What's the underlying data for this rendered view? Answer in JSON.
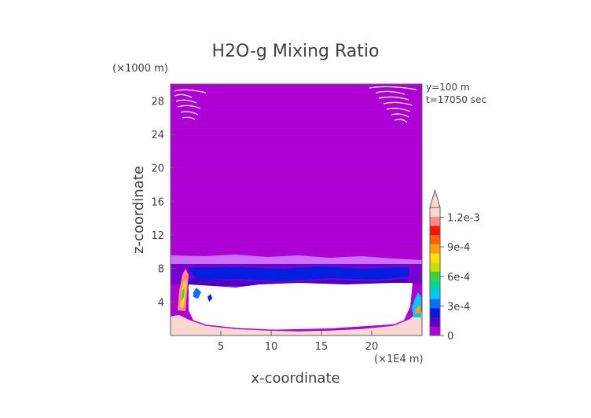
{
  "chart_data": {
    "type": "heatmap",
    "title": "H2O-g Mixing Ratio",
    "xlabel": "x-coordinate",
    "ylabel": "z-coordinate",
    "x_unit": "(×1E4 m)",
    "y_unit": "(×1000 m)",
    "annotations": [
      "y=100 m",
      "t=17050 sec"
    ],
    "xlim": [
      0,
      25
    ],
    "ylim": [
      0,
      30
    ],
    "x_ticks": [
      5,
      10,
      15,
      20
    ],
    "y_ticks": [
      4,
      8,
      12,
      16,
      20,
      24,
      28
    ],
    "grid": false,
    "legend_position": "right",
    "colorbar": {
      "min": 0,
      "max": 0.0013,
      "tick_labels": [
        "0",
        "3e-4",
        "6e-4",
        "9e-4",
        "1.2e-3"
      ],
      "tick_values": [
        0,
        0.0003,
        0.0006,
        0.0009,
        0.0012
      ],
      "colors": [
        "#b000d8",
        "#5a00c8",
        "#0018e0",
        "#0070ff",
        "#00c8ff",
        "#00d8a0",
        "#30d840",
        "#c8e000",
        "#ffe000",
        "#ffa000",
        "#ff6000",
        "#ff1000",
        "#ff8888",
        "#f8d8d0"
      ],
      "extend": "max"
    },
    "field_description_levels": {
      "upper_atmosphere_value": 1e-05,
      "moist_layer_value": 0.00025,
      "lower_region_value": 0.0013
    }
  }
}
